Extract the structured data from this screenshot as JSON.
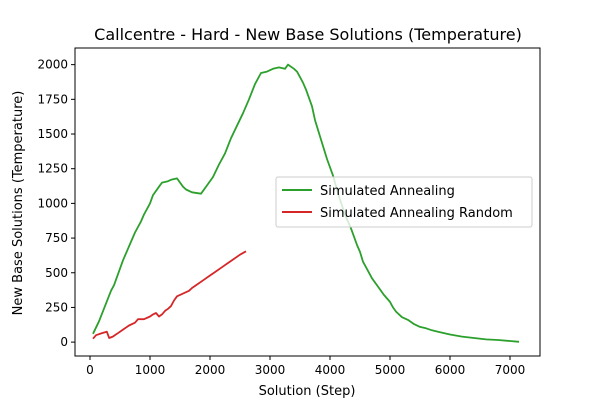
{
  "chart_data": {
    "type": "line",
    "title": "Callcentre - Hard - New Base Solutions (Temperature)",
    "xlabel": "Solution (Step)",
    "ylabel": "New Base Solutions (Temperature)",
    "xlim": [
      -250,
      7500
    ],
    "ylim": [
      -100,
      2120
    ],
    "xticks": [
      0,
      1000,
      2000,
      3000,
      4000,
      5000,
      6000,
      7000
    ],
    "yticks": [
      0,
      250,
      500,
      750,
      1000,
      1250,
      1500,
      1750,
      2000
    ],
    "grid": false,
    "legend_position": "center-right",
    "series": [
      {
        "name": "Simulated Annealing",
        "color": "#2ca02c",
        "x": [
          50,
          150,
          250,
          350,
          400,
          450,
          550,
          650,
          750,
          850,
          900,
          1000,
          1050,
          1150,
          1200,
          1300,
          1350,
          1450,
          1550,
          1600,
          1700,
          1850,
          1950,
          2050,
          2150,
          2250,
          2350,
          2450,
          2550,
          2650,
          2750,
          2850,
          2950,
          3050,
          3150,
          3250,
          3300,
          3400,
          3450,
          3500,
          3550,
          3600,
          3700,
          3750,
          3850,
          3950,
          4050,
          4150,
          4250,
          4350,
          4400,
          4450,
          4500,
          4550,
          4600,
          4700,
          4800,
          4900,
          5000,
          5050,
          5100,
          5200,
          5300,
          5400,
          5500,
          5600,
          5700,
          5800,
          5900,
          6000,
          6200,
          6400,
          6600,
          6800,
          7000,
          7150
        ],
        "y": [
          60,
          150,
          260,
          370,
          410,
          470,
          590,
          690,
          790,
          870,
          920,
          1000,
          1060,
          1120,
          1150,
          1160,
          1170,
          1180,
          1120,
          1100,
          1080,
          1070,
          1130,
          1190,
          1280,
          1360,
          1470,
          1560,
          1650,
          1750,
          1860,
          1940,
          1950,
          1970,
          1980,
          1970,
          2000,
          1970,
          1950,
          1910,
          1870,
          1820,
          1700,
          1600,
          1460,
          1320,
          1200,
          1050,
          920,
          820,
          760,
          700,
          650,
          580,
          540,
          460,
          400,
          340,
          290,
          250,
          220,
          180,
          160,
          130,
          110,
          100,
          85,
          75,
          65,
          55,
          40,
          30,
          20,
          15,
          8,
          2
        ]
      },
      {
        "name": "Simulated Annealing Random",
        "color": "#d62728",
        "x": [
          50,
          100,
          200,
          280,
          320,
          380,
          450,
          550,
          650,
          750,
          800,
          900,
          1000,
          1050,
          1100,
          1150,
          1200,
          1250,
          1300,
          1350,
          1400,
          1450,
          1550,
          1650,
          1700,
          1800,
          1900,
          2000,
          2100,
          2200,
          2300,
          2400,
          2500,
          2600
        ],
        "y": [
          25,
          50,
          65,
          75,
          30,
          40,
          60,
          90,
          120,
          140,
          165,
          165,
          185,
          200,
          210,
          185,
          200,
          225,
          240,
          260,
          300,
          330,
          350,
          370,
          390,
          420,
          450,
          480,
          510,
          540,
          570,
          600,
          630,
          655
        ]
      }
    ]
  }
}
